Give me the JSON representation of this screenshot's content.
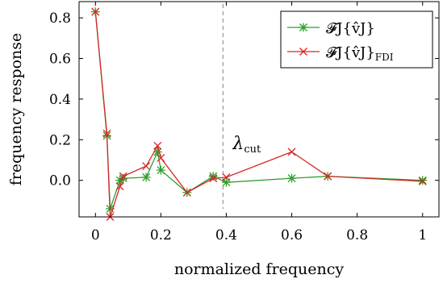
{
  "chart_data": {
    "type": "line",
    "xlabel": "normalized frequency",
    "ylabel": "frequency response",
    "xlim": [
      -0.05,
      1.05
    ],
    "ylim": [
      -0.18,
      0.88
    ],
    "x_ticks": [
      "0",
      "0.2",
      "0.4",
      "0.6",
      "0.8",
      "1"
    ],
    "x_tick_values": [
      0,
      0.2,
      0.4,
      0.6,
      0.8,
      1
    ],
    "y_ticks": [
      "0.0",
      "0.2",
      "0.4",
      "0.6",
      "0.8"
    ],
    "y_tick_values": [
      0,
      0.2,
      0.4,
      0.6,
      0.8
    ],
    "grid": false,
    "legend_position": "top-right",
    "annotation": {
      "x": 0.39,
      "label_main": "λ",
      "label_sub": "cut",
      "line_style": "dashed"
    },
    "series": [
      {
        "name_main": "𝓕J{v̂J}",
        "name_sub": "",
        "color": "#2ca02c",
        "marker": "asterisk",
        "x": [
          0,
          0.035,
          0.045,
          0.075,
          0.085,
          0.155,
          0.19,
          0.2,
          0.28,
          0.36,
          0.4,
          0.6,
          0.71,
          1.0
        ],
        "y": [
          0.83,
          0.22,
          -0.14,
          0.0,
          0.01,
          0.015,
          0.14,
          0.05,
          -0.06,
          0.02,
          -0.01,
          0.01,
          0.02,
          0.0
        ]
      },
      {
        "name_main": "𝓕J{v̂J}",
        "name_sub": "FDI",
        "color": "#d62728",
        "marker": "x",
        "x": [
          0,
          0.035,
          0.045,
          0.075,
          0.085,
          0.155,
          0.19,
          0.2,
          0.28,
          0.36,
          0.4,
          0.6,
          0.71,
          1.0
        ],
        "y": [
          0.83,
          0.23,
          -0.18,
          -0.03,
          0.02,
          0.07,
          0.17,
          0.11,
          -0.06,
          0.01,
          0.015,
          0.14,
          0.02,
          -0.005
        ]
      }
    ]
  }
}
